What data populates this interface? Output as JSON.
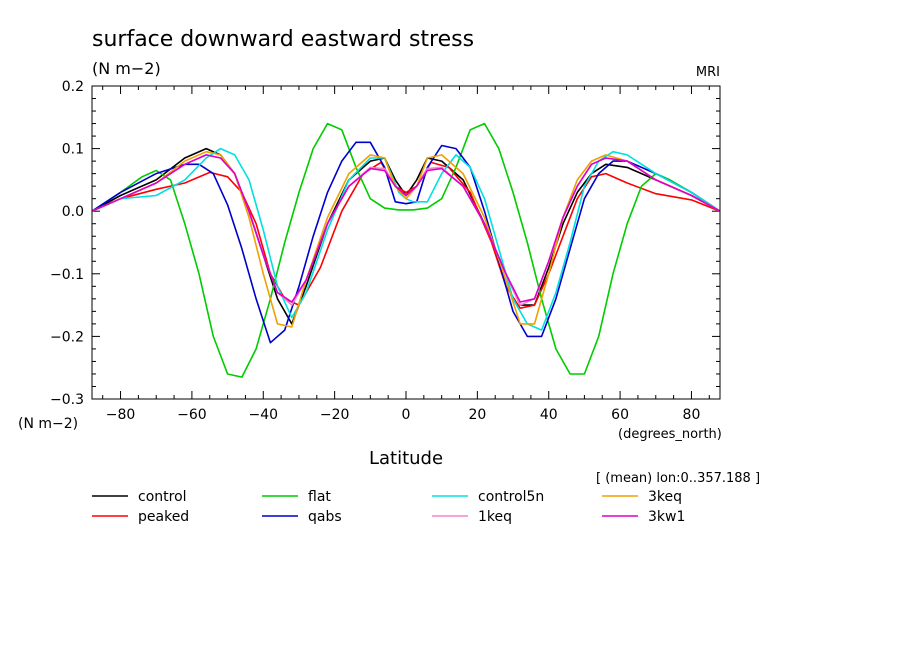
{
  "chart_data": {
    "type": "line",
    "title": "surface downward eastward stress",
    "units": "(N m−2)",
    "source_label": "MRI",
    "ylabel_units": "(N m−2)",
    "xlabel": "Latitude",
    "xunits": "(degrees_north)",
    "note": "[ (mean) lon:0..357.188 ]",
    "xlim": [
      -88,
      88
    ],
    "ylim": [
      -0.3,
      0.2
    ],
    "xticks": [
      -80,
      -60,
      -40,
      -20,
      0,
      20,
      40,
      60,
      80
    ],
    "yticks": [
      -0.3,
      -0.2,
      -0.1,
      0.0,
      0.1,
      0.2
    ],
    "xtick_labels": [
      "−80",
      "−60",
      "−40",
      "−20",
      "0",
      "20",
      "40",
      "60",
      "80"
    ],
    "ytick_labels": [
      "−0.3",
      "−0.2",
      "−0.1",
      "0.0",
      "0.1",
      "0.2"
    ],
    "series": [
      {
        "name": "control",
        "color": "#000000",
        "x": [
          -88,
          -80,
          -70,
          -62,
          -56,
          -52,
          -48,
          -44,
          -40,
          -36,
          -32,
          -28,
          -22,
          -16,
          -10,
          -6,
          -3,
          0,
          3,
          6,
          10,
          16,
          22,
          28,
          32,
          36,
          40,
          44,
          48,
          52,
          56,
          62,
          70,
          80,
          88
        ],
        "y": [
          0.0,
          0.025,
          0.05,
          0.085,
          0.1,
          0.09,
          0.06,
          0.0,
          -0.07,
          -0.14,
          -0.18,
          -0.12,
          -0.02,
          0.05,
          0.08,
          0.085,
          0.05,
          0.025,
          0.05,
          0.085,
          0.08,
          0.05,
          -0.02,
          -0.1,
          -0.15,
          -0.15,
          -0.09,
          -0.02,
          0.03,
          0.06,
          0.075,
          0.07,
          0.05,
          0.025,
          0.0
        ]
      },
      {
        "name": "peaked",
        "color": "#ff0000",
        "x": [
          -88,
          -80,
          -70,
          -62,
          -55,
          -50,
          -46,
          -42,
          -38,
          -34,
          -30,
          -24,
          -18,
          -12,
          -7,
          -3,
          0,
          3,
          7,
          12,
          18,
          24,
          28,
          32,
          36,
          40,
          44,
          48,
          52,
          56,
          62,
          70,
          80,
          88
        ],
        "y": [
          0.0,
          0.02,
          0.035,
          0.045,
          0.062,
          0.055,
          0.03,
          -0.02,
          -0.1,
          -0.14,
          -0.15,
          -0.09,
          0.0,
          0.06,
          0.078,
          0.04,
          0.03,
          0.04,
          0.078,
          0.07,
          0.03,
          -0.05,
          -0.12,
          -0.155,
          -0.15,
          -0.1,
          -0.04,
          0.02,
          0.055,
          0.06,
          0.045,
          0.028,
          0.018,
          0.0
        ]
      },
      {
        "name": "flat",
        "color": "#00cc00",
        "x": [
          -88,
          -80,
          -74,
          -70,
          -66,
          -62,
          -58,
          -54,
          -50,
          -46,
          -42,
          -38,
          -34,
          -30,
          -26,
          -22,
          -18,
          -14,
          -10,
          -6,
          -2,
          0,
          2,
          6,
          10,
          14,
          18,
          22,
          26,
          30,
          34,
          38,
          42,
          46,
          50,
          54,
          58,
          62,
          66,
          70,
          74,
          80,
          88
        ],
        "y": [
          0.0,
          0.03,
          0.055,
          0.065,
          0.05,
          -0.02,
          -0.1,
          -0.2,
          -0.26,
          -0.265,
          -0.22,
          -0.14,
          -0.05,
          0.03,
          0.1,
          0.14,
          0.13,
          0.07,
          0.02,
          0.005,
          0.002,
          0.002,
          0.002,
          0.005,
          0.02,
          0.07,
          0.13,
          0.14,
          0.1,
          0.03,
          -0.05,
          -0.14,
          -0.22,
          -0.26,
          -0.26,
          -0.2,
          -0.1,
          -0.02,
          0.04,
          0.06,
          0.05,
          0.03,
          0.0
        ]
      },
      {
        "name": "qabs",
        "color": "#0000cc",
        "x": [
          -88,
          -80,
          -70,
          -62,
          -58,
          -54,
          -50,
          -46,
          -42,
          -38,
          -34,
          -30,
          -26,
          -22,
          -18,
          -14,
          -10,
          -6,
          -3,
          0,
          3,
          6,
          10,
          14,
          18,
          22,
          26,
          30,
          34,
          38,
          42,
          46,
          50,
          54,
          58,
          62,
          70,
          80,
          88
        ],
        "y": [
          0.0,
          0.03,
          0.06,
          0.075,
          0.075,
          0.06,
          0.01,
          -0.06,
          -0.14,
          -0.21,
          -0.19,
          -0.12,
          -0.04,
          0.03,
          0.08,
          0.11,
          0.11,
          0.07,
          0.015,
          0.012,
          0.015,
          0.07,
          0.105,
          0.1,
          0.07,
          0.0,
          -0.08,
          -0.16,
          -0.2,
          -0.2,
          -0.14,
          -0.06,
          0.02,
          0.06,
          0.08,
          0.08,
          0.06,
          0.03,
          0.0
        ]
      },
      {
        "name": "control5n",
        "color": "#00e0e0",
        "x": [
          -88,
          -80,
          -70,
          -62,
          -56,
          -52,
          -48,
          -44,
          -40,
          -36,
          -32,
          -28,
          -22,
          -16,
          -10,
          -6,
          -2,
          0,
          2,
          6,
          10,
          14,
          18,
          22,
          26,
          30,
          34,
          38,
          42,
          46,
          50,
          54,
          58,
          62,
          70,
          80,
          88
        ],
        "y": [
          0.0,
          0.02,
          0.025,
          0.05,
          0.085,
          0.1,
          0.09,
          0.05,
          -0.03,
          -0.12,
          -0.17,
          -0.13,
          -0.03,
          0.05,
          0.085,
          0.085,
          0.03,
          0.02,
          0.015,
          0.015,
          0.06,
          0.09,
          0.07,
          0.02,
          -0.06,
          -0.14,
          -0.18,
          -0.19,
          -0.13,
          -0.05,
          0.04,
          0.08,
          0.095,
          0.09,
          0.06,
          0.03,
          0.0
        ]
      },
      {
        "name": "1keq",
        "color": "#ee88cc",
        "x": [
          -88,
          -80,
          -70,
          -62,
          -56,
          -52,
          -48,
          -44,
          -40,
          -36,
          -32,
          -28,
          -22,
          -16,
          -10,
          -6,
          -3,
          0,
          3,
          6,
          10,
          16,
          22,
          28,
          32,
          36,
          40,
          44,
          48,
          52,
          56,
          62,
          70,
          80,
          88
        ],
        "y": [
          0.0,
          0.02,
          0.045,
          0.075,
          0.09,
          0.085,
          0.06,
          0.0,
          -0.07,
          -0.13,
          -0.15,
          -0.11,
          -0.02,
          0.04,
          0.07,
          0.068,
          0.04,
          0.025,
          0.04,
          0.068,
          0.07,
          0.04,
          -0.02,
          -0.1,
          -0.15,
          -0.14,
          -0.08,
          -0.01,
          0.04,
          0.075,
          0.085,
          0.08,
          0.05,
          0.025,
          0.0
        ]
      },
      {
        "name": "3keq",
        "color": "#f0a000",
        "x": [
          -88,
          -80,
          -70,
          -62,
          -56,
          -52,
          -48,
          -44,
          -40,
          -36,
          -32,
          -28,
          -22,
          -16,
          -10,
          -6,
          -3,
          0,
          3,
          6,
          10,
          16,
          22,
          28,
          32,
          36,
          40,
          44,
          48,
          52,
          56,
          62,
          70,
          80,
          88
        ],
        "y": [
          0.0,
          0.02,
          0.045,
          0.08,
          0.095,
          0.09,
          0.06,
          -0.01,
          -0.1,
          -0.18,
          -0.185,
          -0.11,
          -0.01,
          0.06,
          0.09,
          0.085,
          0.04,
          0.02,
          0.04,
          0.085,
          0.09,
          0.06,
          -0.01,
          -0.11,
          -0.18,
          -0.18,
          -0.1,
          -0.01,
          0.05,
          0.08,
          0.09,
          0.08,
          0.05,
          0.025,
          0.0
        ]
      },
      {
        "name": "3kw1",
        "color": "#dd00cc",
        "x": [
          -88,
          -80,
          -70,
          -62,
          -56,
          -52,
          -48,
          -44,
          -40,
          -36,
          -32,
          -28,
          -22,
          -16,
          -10,
          -6,
          -3,
          0,
          3,
          6,
          10,
          16,
          22,
          28,
          32,
          36,
          40,
          44,
          48,
          52,
          56,
          62,
          70,
          80,
          88
        ],
        "y": [
          0.0,
          0.02,
          0.045,
          0.075,
          0.09,
          0.085,
          0.06,
          0.0,
          -0.07,
          -0.13,
          -0.145,
          -0.11,
          -0.02,
          0.04,
          0.068,
          0.065,
          0.04,
          0.025,
          0.04,
          0.065,
          0.068,
          0.04,
          -0.02,
          -0.1,
          -0.145,
          -0.14,
          -0.08,
          -0.01,
          0.04,
          0.075,
          0.085,
          0.08,
          0.05,
          0.025,
          0.0
        ]
      }
    ],
    "legend": [
      {
        "name": "control",
        "color": "#000000"
      },
      {
        "name": "flat",
        "color": "#00cc00"
      },
      {
        "name": "control5n",
        "color": "#00e0e0"
      },
      {
        "name": "3keq",
        "color": "#f0a000"
      },
      {
        "name": "peaked",
        "color": "#ff0000"
      },
      {
        "name": "qabs",
        "color": "#0000cc"
      },
      {
        "name": "1keq",
        "color": "#ee88cc"
      },
      {
        "name": "3kw1",
        "color": "#dd00cc"
      }
    ]
  }
}
